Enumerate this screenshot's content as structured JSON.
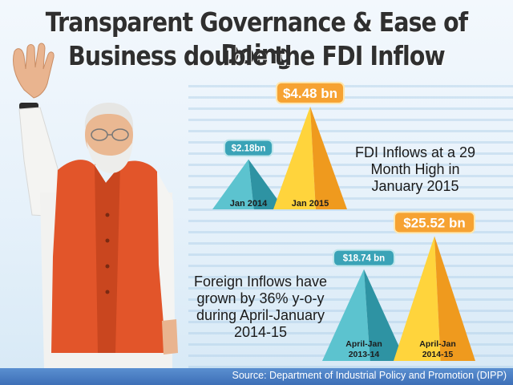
{
  "title": {
    "line1": "Transparent Governance & Ease of Doing",
    "line2": "Business double the FDI Inflow"
  },
  "captions": {
    "top": "FDI Inflows at a 29 Month High in January 2015",
    "bottom": "Foreign Inflows have grown by 36% y-o-y during April-January 2014-15"
  },
  "footer": {
    "source": "Source: Department of Industrial Policy and Promotion (DIPP)"
  },
  "colors": {
    "teal": "#3aa6b4",
    "gold": "#f6b21a",
    "accent_label": "#f4a83a"
  },
  "chart_data": [
    {
      "type": "bar",
      "categories": [
        "Jan 2014",
        "Jan 2015"
      ],
      "values": [
        2.18,
        4.48
      ],
      "value_labels": [
        "$2.18bn",
        "$4.48 bn"
      ],
      "unit": "USD billion"
    },
    {
      "type": "bar",
      "categories": [
        "April-Jan 2013-14",
        "April-Jan 2014-15"
      ],
      "values": [
        18.74,
        25.52
      ],
      "value_labels": [
        "$18.74 bn",
        "$25.52 bn"
      ],
      "unit": "USD billion"
    }
  ]
}
